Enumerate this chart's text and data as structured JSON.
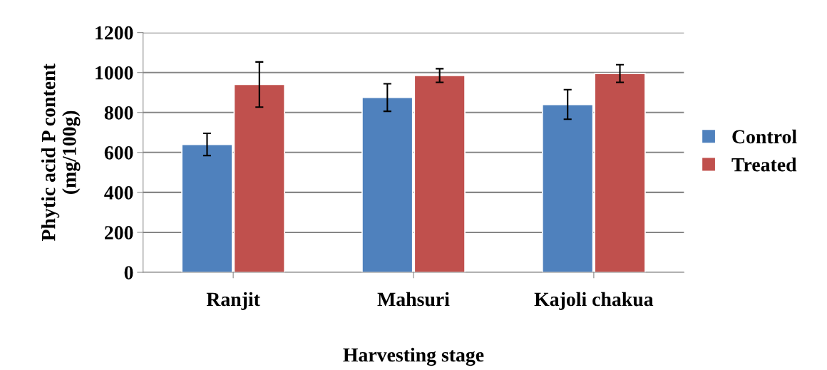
{
  "chart_data": {
    "type": "bar",
    "xlabel": "Harvesting stage",
    "ylabel": "Phytic acid P content\n(mg/100g)",
    "categories": [
      "Ranjit",
      "Mahsuri",
      "Kajoli chakua"
    ],
    "series": [
      {
        "name": "Control",
        "color": "#4f81bd",
        "values": [
          640,
          875,
          840
        ],
        "errors": [
          56,
          69,
          74
        ]
      },
      {
        "name": "Treated",
        "color": "#c0504d",
        "values": [
          940,
          985,
          995
        ],
        "errors": [
          113,
          34,
          44
        ]
      }
    ],
    "ylim": [
      0,
      1200
    ],
    "yticks": [
      0,
      200,
      400,
      600,
      800,
      1000,
      1200
    ],
    "grid": "y",
    "legend": "right"
  }
}
